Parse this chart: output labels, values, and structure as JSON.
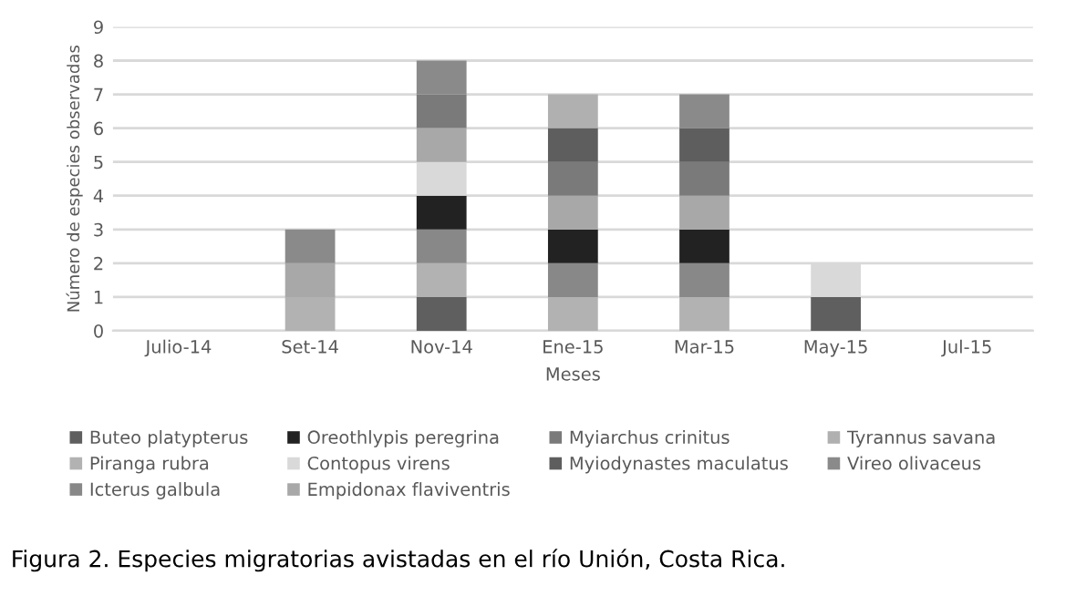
{
  "chart_data": {
    "type": "bar",
    "stacked": true,
    "ylabel": "Número de especies observadas",
    "xlabel": "Meses",
    "categories": [
      "Julio-14",
      "Set-14",
      "Nov-14",
      "Ene-15",
      "Mar-15",
      "May-15",
      "Jul-15"
    ],
    "series": [
      {
        "name": "Buteo platypterus",
        "color": "#5f5f5f",
        "values": [
          0,
          0,
          1,
          0,
          0,
          1,
          0
        ]
      },
      {
        "name": "Piranga rubra",
        "color": "#b2b2b2",
        "values": [
          0,
          1,
          1,
          1,
          1,
          0,
          0
        ]
      },
      {
        "name": "Icterus galbula",
        "color": "#888888",
        "values": [
          0,
          0,
          1,
          1,
          1,
          0,
          0
        ]
      },
      {
        "name": "Oreothlypis peregrina",
        "color": "#222222",
        "values": [
          0,
          0,
          1,
          1,
          1,
          0,
          0
        ]
      },
      {
        "name": "Contopus virens",
        "color": "#d9d9d9",
        "values": [
          0,
          0,
          1,
          0,
          0,
          1,
          0
        ]
      },
      {
        "name": "Empidonax flaviventris",
        "color": "#a8a8a8",
        "values": [
          0,
          1,
          1,
          1,
          1,
          0,
          0
        ]
      },
      {
        "name": "Myiarchus crinitus",
        "color": "#7a7a7a",
        "values": [
          0,
          0,
          1,
          1,
          1,
          0,
          0
        ]
      },
      {
        "name": "Myiodynastes maculatus",
        "color": "#5e5e5e",
        "values": [
          0,
          0,
          0,
          1,
          1,
          0,
          0
        ]
      },
      {
        "name": "Tyrannus savana",
        "color": "#b0b0b0",
        "values": [
          0,
          0,
          0,
          1,
          0,
          0,
          0
        ]
      },
      {
        "name": "Vireo olivaceus",
        "color": "#8a8a8a",
        "values": [
          0,
          1,
          1,
          0,
          1,
          0,
          0
        ]
      }
    ],
    "ylim": [
      0,
      9
    ],
    "yticks": [
      0,
      1,
      2,
      3,
      4,
      5,
      6,
      7,
      8,
      9
    ],
    "grid": "y",
    "legend": "bottom",
    "annotations": [
      "Figura 2. Especies migratorias avistadas en el río Unión, Costa Rica."
    ]
  }
}
